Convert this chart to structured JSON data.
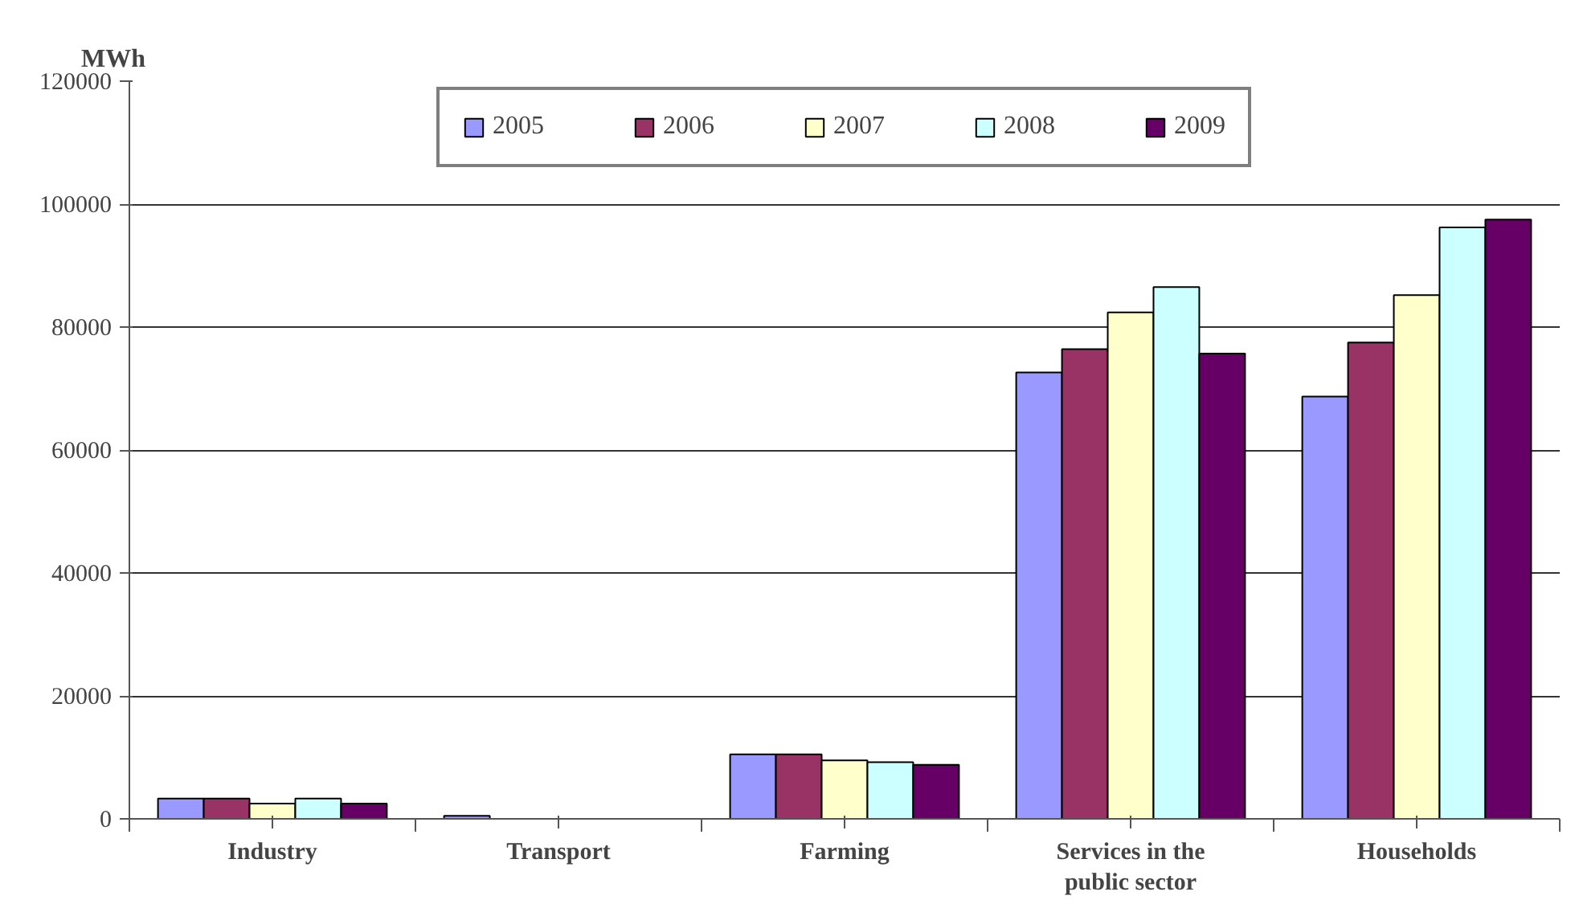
{
  "chart_data": {
    "type": "bar",
    "ylabel": "MWh",
    "categories": [
      "Industry",
      "Transport",
      "Farming",
      "Services in the public sector",
      "Households"
    ],
    "series": [
      {
        "name": "2005",
        "color": "#9999ff",
        "values": [
          3300,
          500,
          10500,
          72600,
          68700
        ]
      },
      {
        "name": "2006",
        "color": "#993366",
        "values": [
          3300,
          0,
          10500,
          76400,
          77500
        ]
      },
      {
        "name": "2007",
        "color": "#ffffcc",
        "values": [
          2500,
          0,
          9500,
          82400,
          85200
        ]
      },
      {
        "name": "2008",
        "color": "#ccffff",
        "values": [
          3300,
          0,
          9200,
          86500,
          96200
        ]
      },
      {
        "name": "2009",
        "color": "#660066",
        "values": [
          2500,
          0,
          8800,
          75700,
          97500
        ]
      }
    ],
    "ylim": [
      0,
      120000
    ],
    "yticks": [
      0,
      20000,
      40000,
      60000,
      80000,
      100000,
      120000
    ],
    "grid": "y",
    "legend": "top"
  }
}
